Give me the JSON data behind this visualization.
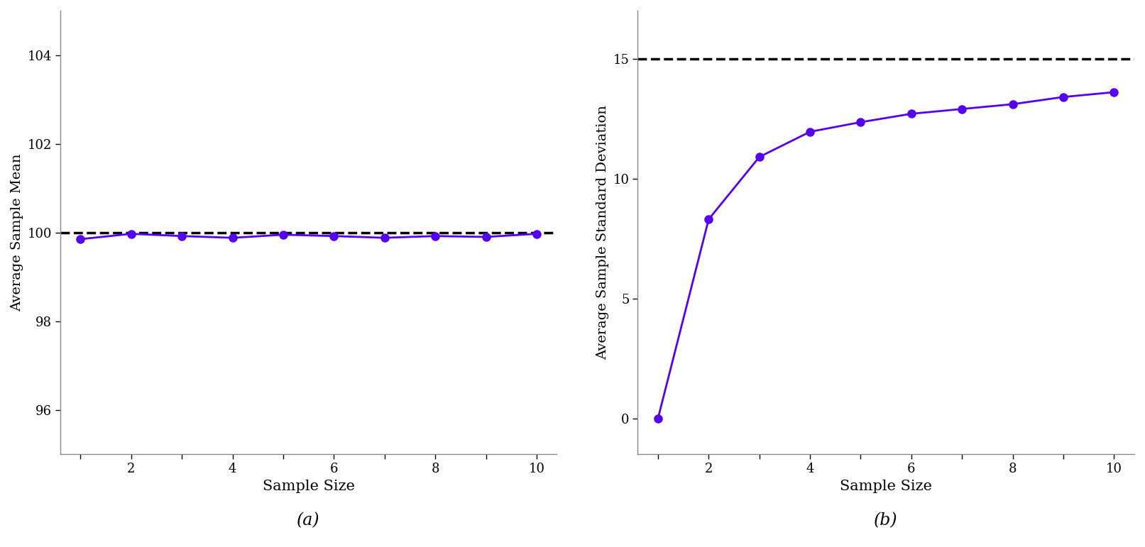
{
  "sample_sizes": [
    1,
    2,
    3,
    4,
    5,
    6,
    7,
    8,
    9,
    10
  ],
  "panel_a": {
    "avg_means": [
      99.85,
      99.97,
      99.92,
      99.88,
      99.95,
      99.92,
      99.88,
      99.92,
      99.9,
      99.97
    ],
    "true_mean": 100,
    "ylabel": "Average Sample Mean",
    "xlabel": "Sample Size",
    "label": "(a)",
    "ylim": [
      95.0,
      105.0
    ],
    "yticks": [
      96,
      98,
      100,
      102,
      104
    ],
    "xticks_minor": [
      1,
      2,
      3,
      4,
      5,
      6,
      7,
      8,
      9,
      10
    ],
    "xticks_label": [
      2,
      4,
      6,
      8,
      10
    ],
    "hline_value": 100
  },
  "panel_b": {
    "avg_sds": [
      0.0,
      8.3,
      10.9,
      11.95,
      12.35,
      12.7,
      12.9,
      13.1,
      13.4,
      13.6
    ],
    "true_sd": 15,
    "ylabel": "Average Sample Standard Deviation",
    "xlabel": "Sample Size",
    "label": "(b)",
    "ylim": [
      -1.5,
      17.0
    ],
    "yticks": [
      0,
      5,
      10,
      15
    ],
    "xticks_minor": [
      1,
      2,
      3,
      4,
      5,
      6,
      7,
      8,
      9,
      10
    ],
    "xticks_label": [
      2,
      4,
      6,
      8,
      10
    ],
    "hline_value": 15
  },
  "line_color": "#5500EE",
  "hline_color": "black",
  "marker": "o",
  "markersize": 8,
  "linewidth": 2.0,
  "hline_linewidth": 2.5,
  "background_color": "white",
  "spine_color": "#888888"
}
